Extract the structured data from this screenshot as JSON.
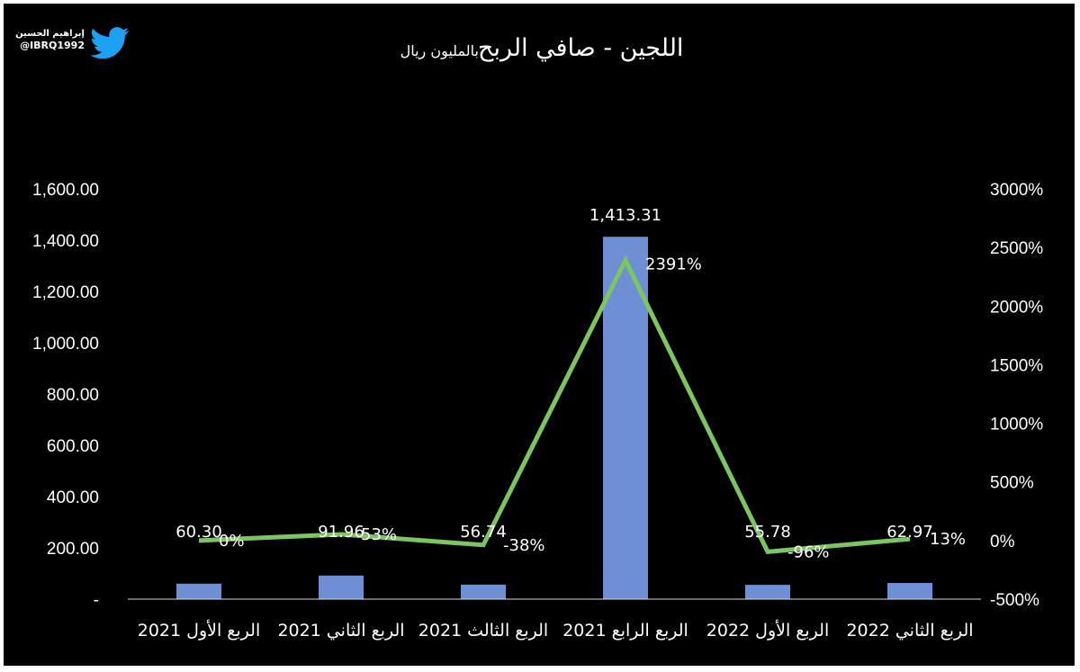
{
  "credit": {
    "name": "إبراهيم الحسين",
    "handle": "@IBRQ1992",
    "icon": "twitter-bird-icon",
    "icon_color": "#1DA1F2"
  },
  "chart_data": {
    "type": "bar",
    "title": "اللجين - صافي الربح",
    "subtitle": "بالمليون ريال",
    "categories": [
      "الربع الأول 2021",
      "الربع الثاني 2021",
      "الربع الثالث 2021",
      "الربع الرابع 2021",
      "الربع الأول 2022",
      "الربع الثاني 2022"
    ],
    "series": [
      {
        "type": "bar",
        "axis": "left",
        "color": "#6F8FD4",
        "values": [
          60.3,
          91.96,
          56.74,
          1413.31,
          55.78,
          62.97
        ],
        "labels": [
          "60.30",
          "91.96",
          "56.74",
          "1,413.31",
          "55.78",
          "62.97"
        ]
      },
      {
        "type": "line",
        "axis": "right",
        "color": "#7DC462",
        "values": [
          0,
          53,
          -38,
          2391,
          -96,
          13
        ],
        "labels": [
          "0%",
          "53%",
          "-38%",
          "2391%",
          "-96%",
          "13%"
        ]
      }
    ],
    "left_axis": {
      "ylim": [
        0,
        1600
      ],
      "ticks": [
        0,
        200,
        400,
        600,
        800,
        1000,
        1200,
        1400,
        1600
      ],
      "tick_labels": [
        "-",
        "200.00",
        "400.00",
        "600.00",
        "800.00",
        "1,000.00",
        "1,200.00",
        "1,400.00",
        "1,600.00"
      ]
    },
    "right_axis": {
      "ylim": [
        -500,
        3000
      ],
      "ticks": [
        -500,
        0,
        500,
        1000,
        1500,
        2000,
        2500,
        3000
      ],
      "tick_labels": [
        "-500%",
        "0%",
        "500%",
        "1000%",
        "1500%",
        "2000%",
        "2500%",
        "3000%"
      ]
    },
    "grid": false,
    "legend": "none",
    "background": "#000000"
  }
}
